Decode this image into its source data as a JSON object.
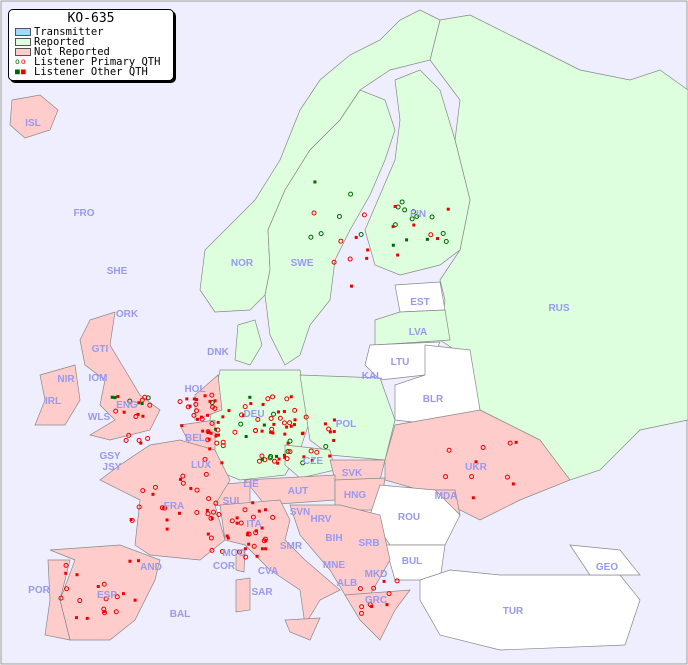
{
  "legend": {
    "title": "KO-635",
    "items": [
      {
        "label": "Transmitter",
        "color": "#99ddff"
      },
      {
        "label": "Reported",
        "color": "#ddffdd"
      },
      {
        "label": "Not Reported",
        "color": "#ffcccc"
      },
      {
        "label": "Listener Primary QTH",
        "marker": "circle",
        "colors": [
          "#006600",
          "#ee0000"
        ]
      },
      {
        "label": "Listener Other QTH",
        "marker": "square",
        "colors": [
          "#006600",
          "#ee0000"
        ]
      }
    ]
  },
  "colors": {
    "sea": "#eeeeff",
    "reported": "#ddffdd",
    "not_reported": "#ffcccc",
    "no_data": "#ffffff",
    "label": "#9999ee"
  },
  "countries": [
    "ISL",
    "FRO",
    "SHE",
    "ORK",
    "NOR",
    "SWE",
    "FIN",
    "EST",
    "LVA",
    "LTU",
    "RUS",
    "DNK",
    "HOL",
    "KAL",
    "BLR",
    "GTI",
    "IOM",
    "NIR",
    "IRL",
    "ENG",
    "WLS",
    "DEU",
    "POL",
    "BEL",
    "GSY",
    "JSY",
    "LUX",
    "CZE",
    "UKR",
    "SVK",
    "FRA",
    "SUI",
    "LIE",
    "AUT",
    "HNG",
    "MDA",
    "SVN",
    "HRV",
    "ROU",
    "ITA",
    "BIH",
    "SRB",
    "SMR",
    "MCO",
    "COR",
    "CVA",
    "MNE",
    "BUL",
    "GEO",
    "AND",
    "POR",
    "ESP",
    "ALB",
    "MKD",
    "SAR",
    "GRC",
    "TUR",
    "BAL"
  ]
}
